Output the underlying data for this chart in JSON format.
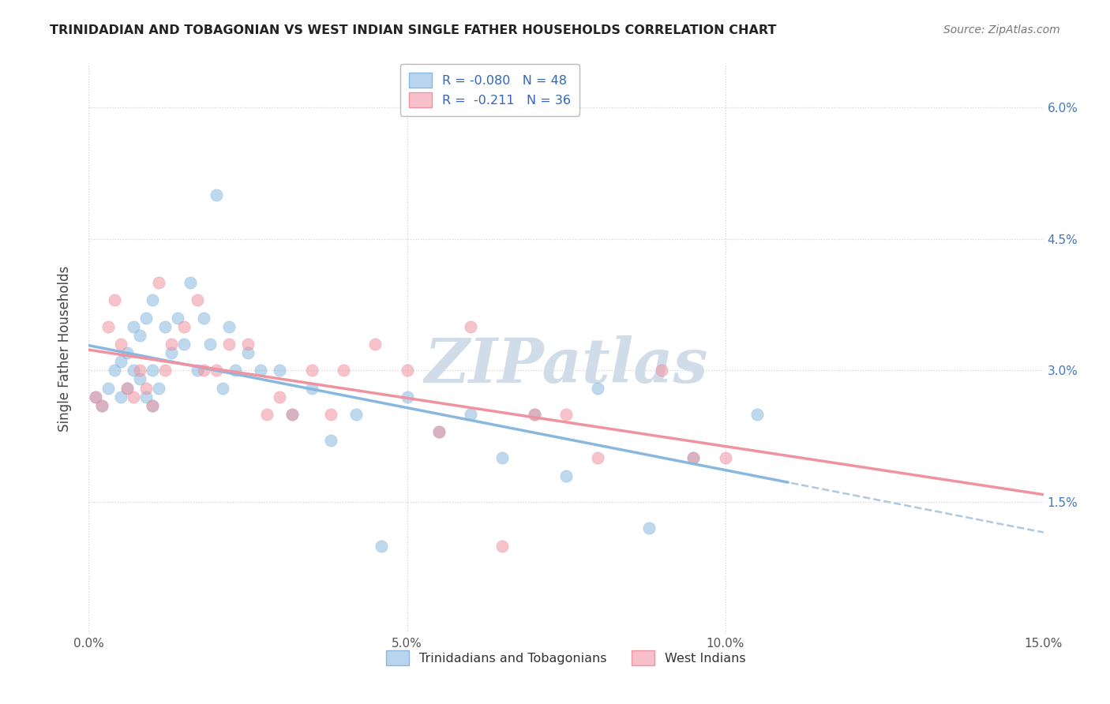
{
  "title": "TRINIDADIAN AND TOBAGONIAN VS WEST INDIAN SINGLE FATHER HOUSEHOLDS CORRELATION CHART",
  "source": "Source: ZipAtlas.com",
  "ylabel": "Single Father Households",
  "x_min": 0.0,
  "x_max": 0.15,
  "y_min": 0.0,
  "y_max": 0.065,
  "x_tick_vals": [
    0.0,
    0.05,
    0.1,
    0.15
  ],
  "x_tick_labels": [
    "0.0%",
    "5.0%",
    "10.0%",
    "15.0%"
  ],
  "y_ticks": [
    0.015,
    0.03,
    0.045,
    0.06
  ],
  "y_tick_labels_right": [
    "1.5%",
    "3.0%",
    "4.5%",
    "6.0%"
  ],
  "series1_name": "Trinidadians and Tobagonians",
  "series1_color": "#89b8df",
  "series2_name": "West Indians",
  "series2_color": "#f093a0",
  "background_color": "#ffffff",
  "grid_color": "#cccccc",
  "watermark": "ZIPatlas",
  "watermark_color": "#d0dce8",
  "legend_r1": "R = -0.080",
  "legend_n1": "N = 48",
  "legend_r2": "R =  -0.211",
  "legend_n2": "N = 36",
  "series1_x": [
    0.001,
    0.002,
    0.003,
    0.004,
    0.005,
    0.005,
    0.006,
    0.006,
    0.007,
    0.007,
    0.008,
    0.008,
    0.009,
    0.009,
    0.01,
    0.01,
    0.01,
    0.011,
    0.012,
    0.013,
    0.014,
    0.015,
    0.016,
    0.017,
    0.018,
    0.019,
    0.02,
    0.021,
    0.022,
    0.023,
    0.025,
    0.027,
    0.03,
    0.032,
    0.035,
    0.038,
    0.042,
    0.046,
    0.05,
    0.055,
    0.06,
    0.065,
    0.07,
    0.075,
    0.08,
    0.088,
    0.095,
    0.105
  ],
  "series1_y": [
    0.027,
    0.026,
    0.028,
    0.03,
    0.031,
    0.027,
    0.032,
    0.028,
    0.035,
    0.03,
    0.034,
    0.029,
    0.036,
    0.027,
    0.038,
    0.03,
    0.026,
    0.028,
    0.035,
    0.032,
    0.036,
    0.033,
    0.04,
    0.03,
    0.036,
    0.033,
    0.05,
    0.028,
    0.035,
    0.03,
    0.032,
    0.03,
    0.03,
    0.025,
    0.028,
    0.022,
    0.025,
    0.01,
    0.027,
    0.023,
    0.025,
    0.02,
    0.025,
    0.018,
    0.028,
    0.012,
    0.02,
    0.025
  ],
  "series2_x": [
    0.001,
    0.002,
    0.003,
    0.004,
    0.005,
    0.006,
    0.007,
    0.008,
    0.009,
    0.01,
    0.011,
    0.012,
    0.013,
    0.015,
    0.017,
    0.018,
    0.02,
    0.022,
    0.025,
    0.028,
    0.03,
    0.032,
    0.035,
    0.038,
    0.04,
    0.045,
    0.05,
    0.055,
    0.06,
    0.065,
    0.07,
    0.075,
    0.08,
    0.09,
    0.095,
    0.1
  ],
  "series2_y": [
    0.027,
    0.026,
    0.035,
    0.038,
    0.033,
    0.028,
    0.027,
    0.03,
    0.028,
    0.026,
    0.04,
    0.03,
    0.033,
    0.035,
    0.038,
    0.03,
    0.03,
    0.033,
    0.033,
    0.025,
    0.027,
    0.025,
    0.03,
    0.025,
    0.03,
    0.033,
    0.03,
    0.023,
    0.035,
    0.01,
    0.025,
    0.025,
    0.02,
    0.03,
    0.02,
    0.02
  ]
}
